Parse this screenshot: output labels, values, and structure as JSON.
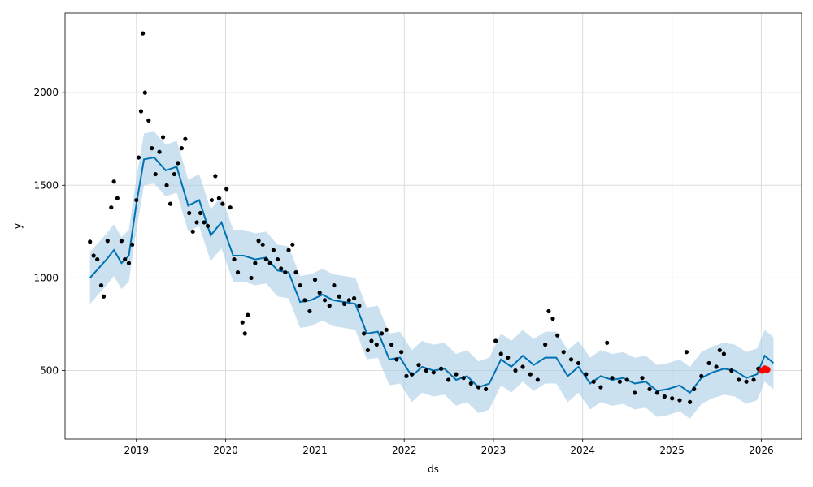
{
  "chart_data": {
    "type": "scatter",
    "title": "",
    "xlabel": "ds",
    "ylabel": "y",
    "x_ticks": [
      "2019",
      "2020",
      "2021",
      "2022",
      "2023",
      "2024",
      "2025",
      "2026"
    ],
    "y_ticks": [
      500,
      1000,
      1500,
      2000
    ],
    "xlim": [
      "2018-03-15",
      "2026-06-15"
    ],
    "ylim": [
      130,
      2430
    ],
    "grid": true,
    "colors": {
      "observed": "#000000",
      "forecast_line": "#0072B2",
      "uncertainty": "#a8cde6",
      "highlight": "#ff0000"
    },
    "series": [
      {
        "role": "observed",
        "points": [
          [
            "2018-06-25",
            1195
          ],
          [
            "2018-07-10",
            1120
          ],
          [
            "2018-07-25",
            1100
          ],
          [
            "2018-08-10",
            960
          ],
          [
            "2018-08-20",
            900
          ],
          [
            "2018-09-05",
            1200
          ],
          [
            "2018-09-20",
            1380
          ],
          [
            "2018-10-01",
            1520
          ],
          [
            "2018-10-15",
            1430
          ],
          [
            "2018-11-01",
            1200
          ],
          [
            "2018-11-15",
            1100
          ],
          [
            "2018-12-01",
            1080
          ],
          [
            "2018-12-15",
            1180
          ],
          [
            "2019-01-01",
            1420
          ],
          [
            "2019-01-10",
            1650
          ],
          [
            "2019-01-20",
            1900
          ],
          [
            "2019-01-27",
            2320
          ],
          [
            "2019-02-05",
            2000
          ],
          [
            "2019-02-20",
            1850
          ],
          [
            "2019-03-05",
            1700
          ],
          [
            "2019-03-20",
            1560
          ],
          [
            "2019-04-05",
            1680
          ],
          [
            "2019-04-20",
            1760
          ],
          [
            "2019-05-05",
            1500
          ],
          [
            "2019-05-20",
            1400
          ],
          [
            "2019-06-05",
            1560
          ],
          [
            "2019-06-20",
            1620
          ],
          [
            "2019-07-05",
            1700
          ],
          [
            "2019-07-20",
            1750
          ],
          [
            "2019-08-05",
            1350
          ],
          [
            "2019-08-20",
            1250
          ],
          [
            "2019-09-05",
            1300
          ],
          [
            "2019-09-20",
            1350
          ],
          [
            "2019-10-05",
            1300
          ],
          [
            "2019-10-20",
            1280
          ],
          [
            "2019-11-05",
            1420
          ],
          [
            "2019-11-20",
            1550
          ],
          [
            "2019-12-05",
            1430
          ],
          [
            "2019-12-20",
            1400
          ],
          [
            "2020-01-05",
            1480
          ],
          [
            "2020-01-20",
            1380
          ],
          [
            "2020-02-05",
            1100
          ],
          [
            "2020-02-20",
            1030
          ],
          [
            "2020-03-10",
            760
          ],
          [
            "2020-03-20",
            700
          ],
          [
            "2020-04-01",
            800
          ],
          [
            "2020-04-15",
            1000
          ],
          [
            "2020-05-01",
            1080
          ],
          [
            "2020-05-15",
            1200
          ],
          [
            "2020-06-01",
            1180
          ],
          [
            "2020-06-15",
            1100
          ],
          [
            "2020-07-01",
            1080
          ],
          [
            "2020-07-15",
            1150
          ],
          [
            "2020-08-01",
            1100
          ],
          [
            "2020-08-15",
            1050
          ],
          [
            "2020-09-01",
            1030
          ],
          [
            "2020-09-15",
            1150
          ],
          [
            "2020-10-01",
            1180
          ],
          [
            "2020-10-15",
            1030
          ],
          [
            "2020-11-01",
            960
          ],
          [
            "2020-11-20",
            880
          ],
          [
            "2020-12-10",
            820
          ],
          [
            "2021-01-01",
            990
          ],
          [
            "2021-01-20",
            920
          ],
          [
            "2021-02-10",
            880
          ],
          [
            "2021-03-01",
            850
          ],
          [
            "2021-03-20",
            960
          ],
          [
            "2021-04-10",
            900
          ],
          [
            "2021-05-01",
            860
          ],
          [
            "2021-05-20",
            880
          ],
          [
            "2021-06-10",
            890
          ],
          [
            "2021-07-01",
            850
          ],
          [
            "2021-07-20",
            700
          ],
          [
            "2021-08-05",
            610
          ],
          [
            "2021-08-20",
            660
          ],
          [
            "2021-09-10",
            640
          ],
          [
            "2021-10-01",
            700
          ],
          [
            "2021-10-20",
            720
          ],
          [
            "2021-11-10",
            640
          ],
          [
            "2021-12-01",
            560
          ],
          [
            "2021-12-20",
            600
          ],
          [
            "2022-01-10",
            470
          ],
          [
            "2022-02-01",
            480
          ],
          [
            "2022-03-01",
            530
          ],
          [
            "2022-04-01",
            500
          ],
          [
            "2022-05-01",
            490
          ],
          [
            "2022-06-01",
            510
          ],
          [
            "2022-07-01",
            450
          ],
          [
            "2022-08-01",
            480
          ],
          [
            "2022-09-01",
            460
          ],
          [
            "2022-10-01",
            430
          ],
          [
            "2022-11-01",
            410
          ],
          [
            "2022-12-01",
            400
          ],
          [
            "2023-01-10",
            660
          ],
          [
            "2023-02-01",
            590
          ],
          [
            "2023-03-01",
            570
          ],
          [
            "2023-04-01",
            500
          ],
          [
            "2023-05-01",
            520
          ],
          [
            "2023-06-01",
            480
          ],
          [
            "2023-07-01",
            450
          ],
          [
            "2023-08-01",
            640
          ],
          [
            "2023-08-15",
            820
          ],
          [
            "2023-09-01",
            780
          ],
          [
            "2023-09-20",
            690
          ],
          [
            "2023-10-15",
            600
          ],
          [
            "2023-11-15",
            560
          ],
          [
            "2023-12-15",
            540
          ],
          [
            "2024-01-15",
            480
          ],
          [
            "2024-02-15",
            440
          ],
          [
            "2024-03-15",
            410
          ],
          [
            "2024-04-10",
            650
          ],
          [
            "2024-05-01",
            460
          ],
          [
            "2024-06-01",
            440
          ],
          [
            "2024-07-01",
            450
          ],
          [
            "2024-08-01",
            380
          ],
          [
            "2024-09-01",
            460
          ],
          [
            "2024-10-01",
            400
          ],
          [
            "2024-11-01",
            380
          ],
          [
            "2024-12-01",
            360
          ],
          [
            "2025-01-01",
            350
          ],
          [
            "2025-02-01",
            340
          ],
          [
            "2025-03-01",
            600
          ],
          [
            "2025-03-15",
            330
          ],
          [
            "2025-04-01",
            400
          ],
          [
            "2025-05-01",
            470
          ],
          [
            "2025-06-01",
            540
          ],
          [
            "2025-07-01",
            520
          ],
          [
            "2025-07-15",
            610
          ],
          [
            "2025-08-01",
            590
          ],
          [
            "2025-09-01",
            500
          ],
          [
            "2025-10-01",
            450
          ],
          [
            "2025-11-01",
            440
          ],
          [
            "2025-12-01",
            450
          ],
          [
            "2025-12-20",
            510
          ]
        ]
      },
      {
        "role": "forecast",
        "points": [
          [
            "2018-06-25",
            1000
          ],
          [
            "2018-09-01",
            1100
          ],
          [
            "2018-10-01",
            1150
          ],
          [
            "2018-11-01",
            1080
          ],
          [
            "2018-12-01",
            1120
          ],
          [
            "2019-01-01",
            1400
          ],
          [
            "2019-02-01",
            1640
          ],
          [
            "2019-03-15",
            1650
          ],
          [
            "2019-05-01",
            1580
          ],
          [
            "2019-06-15",
            1600
          ],
          [
            "2019-08-01",
            1390
          ],
          [
            "2019-09-15",
            1420
          ],
          [
            "2019-11-01",
            1230
          ],
          [
            "2019-12-15",
            1300
          ],
          [
            "2020-02-01",
            1120
          ],
          [
            "2020-03-15",
            1120
          ],
          [
            "2020-05-01",
            1100
          ],
          [
            "2020-06-15",
            1110
          ],
          [
            "2020-08-01",
            1040
          ],
          [
            "2020-09-15",
            1030
          ],
          [
            "2020-11-01",
            870
          ],
          [
            "2020-12-15",
            880
          ],
          [
            "2021-02-01",
            910
          ],
          [
            "2021-03-15",
            880
          ],
          [
            "2021-05-01",
            870
          ],
          [
            "2021-06-15",
            860
          ],
          [
            "2021-08-01",
            700
          ],
          [
            "2021-09-15",
            710
          ],
          [
            "2021-11-01",
            560
          ],
          [
            "2021-12-15",
            570
          ],
          [
            "2022-02-01",
            470
          ],
          [
            "2022-03-15",
            520
          ],
          [
            "2022-05-01",
            500
          ],
          [
            "2022-06-15",
            510
          ],
          [
            "2022-08-01",
            450
          ],
          [
            "2022-09-15",
            470
          ],
          [
            "2022-11-01",
            410
          ],
          [
            "2022-12-15",
            430
          ],
          [
            "2023-02-01",
            560
          ],
          [
            "2023-03-15",
            520
          ],
          [
            "2023-05-01",
            580
          ],
          [
            "2023-06-15",
            530
          ],
          [
            "2023-08-01",
            570
          ],
          [
            "2023-09-15",
            570
          ],
          [
            "2023-11-01",
            470
          ],
          [
            "2023-12-15",
            520
          ],
          [
            "2024-02-01",
            430
          ],
          [
            "2024-03-15",
            470
          ],
          [
            "2024-05-01",
            450
          ],
          [
            "2024-06-15",
            460
          ],
          [
            "2024-08-01",
            430
          ],
          [
            "2024-09-15",
            440
          ],
          [
            "2024-11-01",
            390
          ],
          [
            "2024-12-15",
            400
          ],
          [
            "2025-02-01",
            420
          ],
          [
            "2025-03-15",
            380
          ],
          [
            "2025-05-01",
            460
          ],
          [
            "2025-06-15",
            490
          ],
          [
            "2025-08-01",
            510
          ],
          [
            "2025-09-15",
            500
          ],
          [
            "2025-11-01",
            460
          ],
          [
            "2025-12-15",
            480
          ],
          [
            "2026-01-15",
            580
          ],
          [
            "2026-02-20",
            540
          ]
        ]
      },
      {
        "role": "highlight",
        "points": [
          [
            "2026-01-05",
            500
          ],
          [
            "2026-01-15",
            510
          ],
          [
            "2026-01-25",
            505
          ]
        ]
      }
    ],
    "uncertainty_band": {
      "offset": 140
    }
  }
}
